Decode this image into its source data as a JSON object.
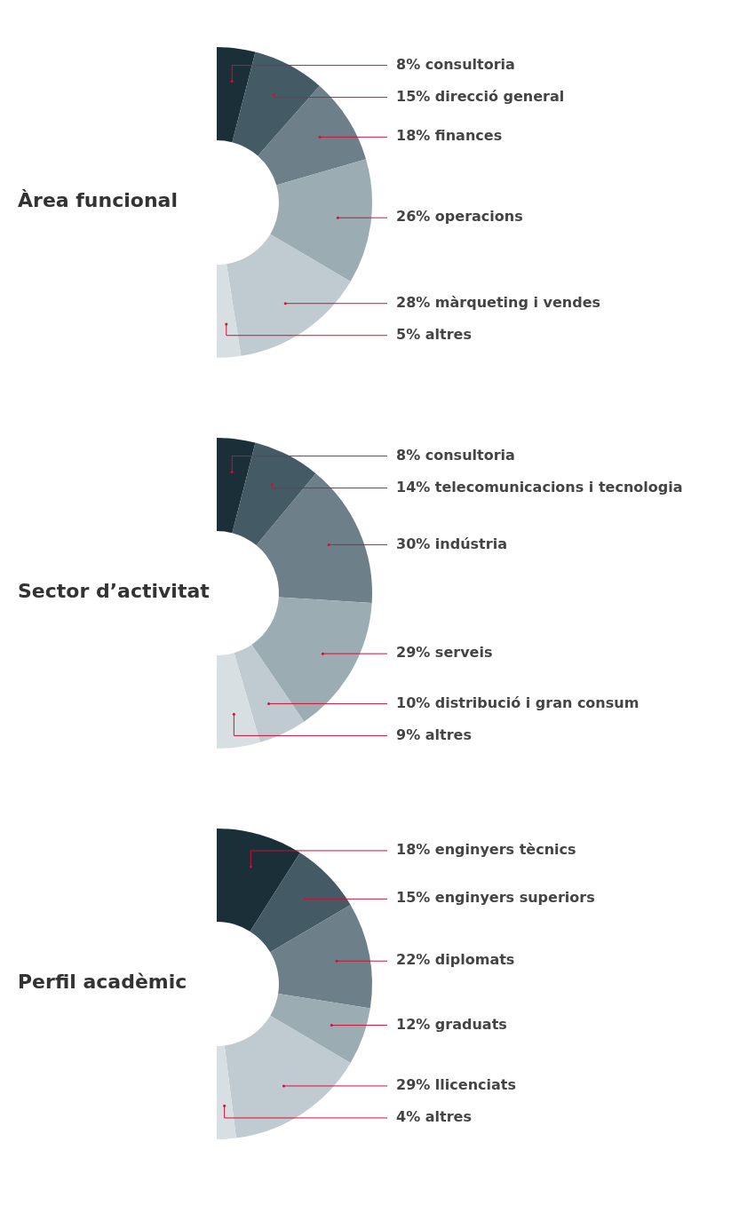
{
  "chart_data": [
    {
      "type": "donut",
      "title": "Àrea funcional",
      "categories": [
        "consultoria",
        "direcció general",
        "finances",
        "operacions",
        "màrqueting i vendes",
        "altres"
      ],
      "values": [
        8,
        15,
        18,
        26,
        28,
        5
      ],
      "value_labels": [
        "8%",
        "15%",
        "18%",
        "26%",
        "28%",
        "5%"
      ],
      "colors": [
        "#1a2f38",
        "#445b66",
        "#6d8089",
        "#9badb3",
        "#bfcbd1",
        "#d8dfe2"
      ]
    },
    {
      "type": "donut",
      "title": "Sector d’activitat",
      "categories": [
        "consultoria",
        "telecomunicacions i tecnologia",
        "indústria",
        "serveis",
        "distribució i gran consum",
        "altres"
      ],
      "values": [
        8,
        14,
        30,
        29,
        10,
        9
      ],
      "value_labels": [
        "8%",
        "14%",
        "30%",
        "29%",
        "10%",
        "9%"
      ],
      "colors": [
        "#1a2f38",
        "#445b66",
        "#6d8089",
        "#9badb3",
        "#bfcbd1",
        "#d8dfe2"
      ]
    },
    {
      "type": "donut",
      "title": "Perfil acadèmic",
      "categories": [
        "enginyers tècnics",
        "enginyers superiors",
        "diplomats",
        "graduats",
        "llicenciats",
        "altres"
      ],
      "values": [
        18,
        15,
        22,
        12,
        29,
        4
      ],
      "value_labels": [
        "18%",
        "15%",
        "22%",
        "12%",
        "29%",
        "4%"
      ],
      "colors": [
        "#1a2f38",
        "#445b66",
        "#6d8089",
        "#9badb3",
        "#bfcbd1",
        "#d8dfe2"
      ]
    }
  ]
}
